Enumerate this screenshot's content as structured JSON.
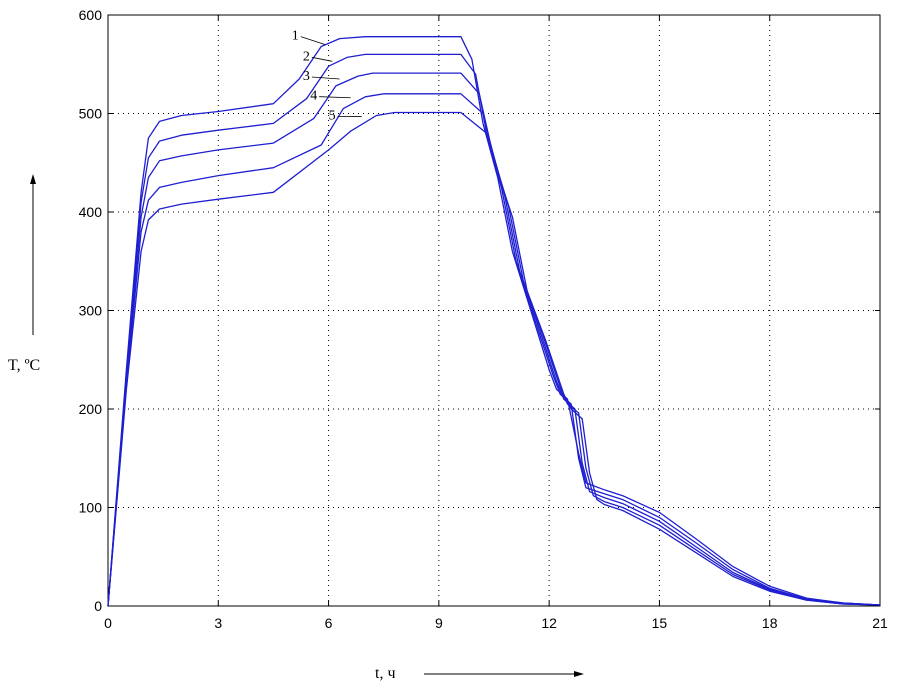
{
  "chart_data": {
    "type": "line",
    "xlabel": "t, ч",
    "ylabel": "T, ºC",
    "xlim": [
      0,
      21
    ],
    "ylim": [
      0,
      600
    ],
    "xticks": [
      0,
      3,
      6,
      9,
      12,
      15,
      18,
      21
    ],
    "yticks": [
      0,
      100,
      200,
      300,
      400,
      500,
      600
    ],
    "grid": true,
    "line_color": "#1f1fd0",
    "series": [
      {
        "name": "1",
        "x": [
          0,
          0.5,
          0.9,
          1.1,
          1.4,
          2,
          3,
          4.5,
          5.2,
          5.8,
          6.3,
          7,
          8,
          9,
          9.6,
          9.9,
          10.2,
          10.6,
          11,
          11.5,
          12,
          12.2,
          12.5,
          12.8,
          13,
          13.5,
          14,
          15,
          16,
          17,
          18,
          19,
          20,
          21
        ],
        "y": [
          0,
          240,
          420,
          475,
          492,
          498,
          502,
          510,
          535,
          568,
          576,
          578,
          578,
          578,
          578,
          555,
          490,
          435,
          360,
          300,
          240,
          220,
          210,
          155,
          125,
          118,
          112,
          95,
          68,
          40,
          20,
          8,
          3,
          1
        ]
      },
      {
        "name": "2",
        "x": [
          0,
          0.5,
          0.9,
          1.1,
          1.4,
          2,
          3,
          4.5,
          5.4,
          6,
          6.5,
          7,
          8,
          9,
          9.6,
          10,
          10.3,
          10.7,
          11.1,
          11.6,
          12.1,
          12.3,
          12.6,
          12.8,
          13,
          13.5,
          14,
          15,
          16,
          17,
          18,
          19,
          20,
          21
        ],
        "y": [
          0,
          235,
          410,
          455,
          472,
          478,
          483,
          490,
          515,
          548,
          557,
          560,
          560,
          560,
          560,
          540,
          480,
          425,
          350,
          292,
          235,
          215,
          205,
          150,
          120,
          114,
          108,
          90,
          64,
          37,
          18,
          7,
          3,
          1
        ]
      },
      {
        "name": "3",
        "x": [
          0,
          0.5,
          0.9,
          1.1,
          1.4,
          2,
          3,
          4.5,
          5.6,
          6.2,
          6.8,
          7.2,
          8,
          9,
          9.6,
          10.1,
          10.4,
          10.8,
          11.2,
          11.7,
          12.2,
          12.4,
          12.7,
          12.9,
          13.1,
          13.5,
          14,
          15,
          16,
          17,
          18,
          19,
          20,
          21
        ],
        "y": [
          0,
          230,
          395,
          435,
          452,
          457,
          463,
          470,
          495,
          528,
          538,
          541,
          541,
          541,
          541,
          520,
          470,
          415,
          340,
          285,
          228,
          210,
          200,
          145,
          116,
          110,
          104,
          86,
          60,
          34,
          17,
          7,
          3,
          1
        ]
      },
      {
        "name": "4",
        "x": [
          0,
          0.5,
          0.9,
          1.1,
          1.4,
          2,
          3,
          4.5,
          5.8,
          6.4,
          7,
          7.5,
          8,
          9,
          9.6,
          10.2,
          10.5,
          10.9,
          11.3,
          11.8,
          12.3,
          12.5,
          12.8,
          13,
          13.2,
          13.5,
          14,
          15,
          16,
          17,
          18,
          19,
          20,
          21
        ],
        "y": [
          0,
          225,
          380,
          412,
          425,
          430,
          437,
          445,
          468,
          505,
          517,
          520,
          520,
          520,
          520,
          500,
          455,
          405,
          330,
          278,
          222,
          205,
          196,
          140,
          112,
          106,
          100,
          82,
          57,
          32,
          16,
          6,
          2,
          1
        ]
      },
      {
        "name": "5",
        "x": [
          0,
          0.5,
          0.9,
          1.1,
          1.4,
          2,
          3,
          4.5,
          6,
          6.6,
          7.3,
          7.8,
          8,
          9,
          9.6,
          10.3,
          10.6,
          11,
          11.4,
          11.9,
          12.4,
          12.6,
          12.9,
          13.1,
          13.3,
          13.5,
          14,
          15,
          16,
          17,
          18,
          19,
          20,
          21
        ],
        "y": [
          0,
          220,
          360,
          392,
          403,
          408,
          413,
          420,
          463,
          482,
          498,
          501,
          501,
          501,
          501,
          480,
          440,
          395,
          320,
          270,
          215,
          200,
          190,
          135,
          108,
          103,
          97,
          78,
          54,
          30,
          15,
          6,
          2,
          1
        ]
      }
    ]
  }
}
